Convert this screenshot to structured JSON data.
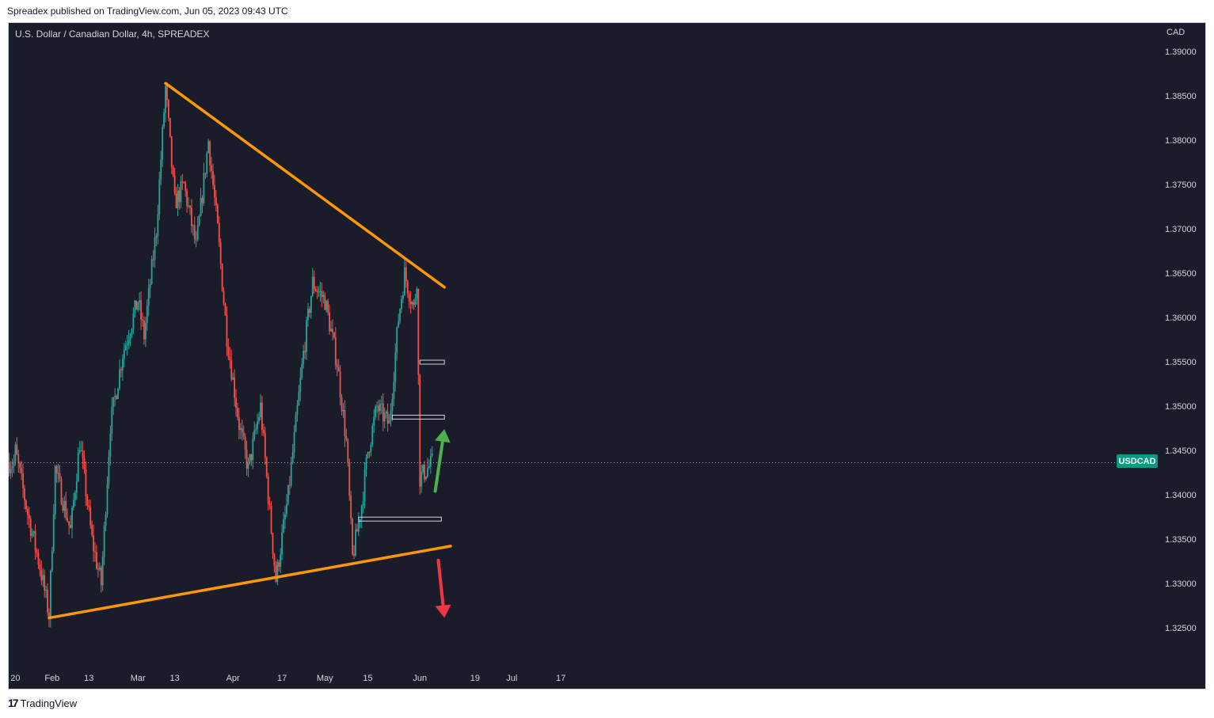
{
  "header": {
    "text": "Spreadex published on TradingView.com, Jun 05, 2023 09:43 UTC"
  },
  "symbol_title": "U.S. Dollar / Canadian Dollar, 4h, SPREADEX",
  "currency": "CAD",
  "badge": "USDCAD",
  "footer": {
    "brand": "TradingView"
  },
  "colors": {
    "background": "#1a1d29",
    "up": "#26a69a",
    "down": "#ef5350",
    "trendline": "#ff9800",
    "arrow_up": "#4caf50",
    "arrow_down": "#f23645",
    "price_line": "#ce93d8"
  },
  "chart_data": {
    "type": "candlestick",
    "ylabel": "CAD",
    "ylim": [
      1.3205,
      1.393
    ],
    "y_ticks": [
      "1.39000",
      "1.38500",
      "1.38000",
      "1.37500",
      "1.37000",
      "1.36500",
      "1.36000",
      "1.35500",
      "1.35000",
      "1.34500",
      "1.34000",
      "1.33500",
      "1.33000",
      "1.32500"
    ],
    "x_ticks": [
      "20",
      "Feb",
      "13",
      "Mar",
      "13",
      "Apr",
      "17",
      "May",
      "15",
      "Jun",
      "19",
      "Jul",
      "17"
    ],
    "last_price": 1.3437,
    "price_path": [
      {
        "t": "Jan 20",
        "p": 1.345
      },
      {
        "t": "Jan 24",
        "p": 1.338
      },
      {
        "t": "Jan 28",
        "p": 1.332
      },
      {
        "t": "Jan 31",
        "p": 1.3265
      },
      {
        "t": "Feb 2",
        "p": 1.343
      },
      {
        "t": "Feb 7",
        "p": 1.336
      },
      {
        "t": "Feb 10",
        "p": 1.346
      },
      {
        "t": "Feb 14",
        "p": 1.335
      },
      {
        "t": "Feb 17",
        "p": 1.33
      },
      {
        "t": "Feb 20",
        "p": 1.348
      },
      {
        "t": "Feb 24",
        "p": 1.356
      },
      {
        "t": "Mar 1",
        "p": 1.362
      },
      {
        "t": "Mar 3",
        "p": 1.358
      },
      {
        "t": "Mar 7",
        "p": 1.37
      },
      {
        "t": "Mar 10",
        "p": 1.386
      },
      {
        "t": "Mar 13",
        "p": 1.373
      },
      {
        "t": "Mar 16",
        "p": 1.375
      },
      {
        "t": "Mar 20",
        "p": 1.368
      },
      {
        "t": "Mar 24",
        "p": 1.38
      },
      {
        "t": "Mar 27",
        "p": 1.37
      },
      {
        "t": "Mar 30",
        "p": 1.358
      },
      {
        "t": "Apr 3",
        "p": 1.348
      },
      {
        "t": "Apr 6",
        "p": 1.343
      },
      {
        "t": "Apr 10",
        "p": 1.35
      },
      {
        "t": "Apr 13",
        "p": 1.338
      },
      {
        "t": "Apr 15",
        "p": 1.3305
      },
      {
        "t": "Apr 19",
        "p": 1.34
      },
      {
        "t": "Apr 24",
        "p": 1.356
      },
      {
        "t": "Apr 27",
        "p": 1.364
      },
      {
        "t": "May 1",
        "p": 1.362
      },
      {
        "t": "May 5",
        "p": 1.355
      },
      {
        "t": "May 8",
        "p": 1.346
      },
      {
        "t": "May 10",
        "p": 1.333
      },
      {
        "t": "May 13",
        "p": 1.339
      },
      {
        "t": "May 15",
        "p": 1.345
      },
      {
        "t": "May 18",
        "p": 1.35
      },
      {
        "t": "May 22",
        "p": 1.348
      },
      {
        "t": "May 25",
        "p": 1.36
      },
      {
        "t": "May 27",
        "p": 1.365
      },
      {
        "t": "May 30",
        "p": 1.361
      },
      {
        "t": "May 31",
        "p": 1.3645
      },
      {
        "t": "Jun 1",
        "p": 1.342
      },
      {
        "t": "Jun 5",
        "p": 1.3437
      }
    ],
    "trendlines": [
      {
        "name": "upper",
        "from": {
          "t": "Mar 10",
          "p": 1.3865
        },
        "to": {
          "t": "Jun 9",
          "p": 1.3635
        }
      },
      {
        "name": "lower",
        "from": {
          "t": "Jan 31",
          "p": 1.3262
        },
        "to": {
          "t": "Jun 11",
          "p": 1.3343
        }
      }
    ],
    "zones": [
      {
        "from": {
          "t": "Jun 1"
        },
        "to": {
          "t": "Jun 9"
        },
        "p": 1.355
      },
      {
        "from": {
          "t": "May 23"
        },
        "to": {
          "t": "Jun 9"
        },
        "p": 1.3488
      },
      {
        "from": {
          "t": "May 12"
        },
        "to": {
          "t": "Jun 8"
        },
        "p": 1.3373
      }
    ],
    "arrows": [
      {
        "direction": "up",
        "from": {
          "t": "Jun 6",
          "p": 1.3405
        },
        "to": {
          "t": "Jun 9",
          "p": 1.3475
        }
      },
      {
        "direction": "down",
        "from": {
          "t": "Jun 7",
          "p": 1.3327
        },
        "to": {
          "t": "Jun 9",
          "p": 1.3262
        }
      }
    ]
  }
}
